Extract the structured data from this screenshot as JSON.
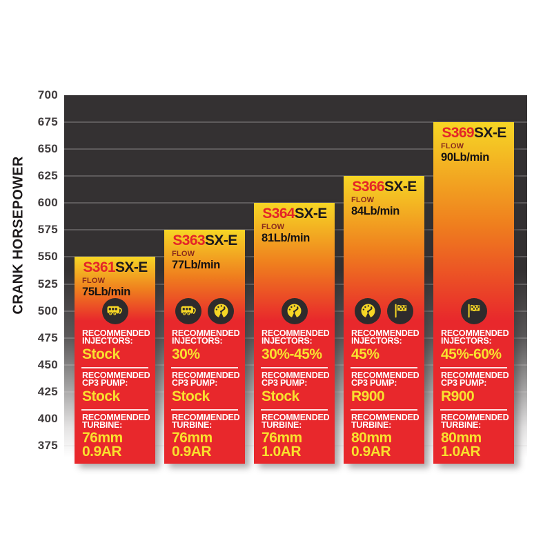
{
  "labels": {
    "flow": "FLOW",
    "recommended": "RECOMMENDED",
    "injectors": "INJECTORS:",
    "cp3_pump": "CP3 PUMP:",
    "turbine": "TURBINE:"
  },
  "colors": {
    "bar_yellow": "#f6d625",
    "bar_orange": "#ef7e1e",
    "bar_red": "#e8282c",
    "value_yellow": "#f9e12e",
    "label_white": "#ffffff",
    "model_red": "#e42528",
    "model_black": "#1d1a1b",
    "icon_circle_bg": "#2e2b2c",
    "plot_bg_dark": "#343132",
    "tick_text": "#3f3b3c"
  },
  "chart_data": {
    "type": "bar",
    "title": "",
    "xlabel": "",
    "ylabel": "CRANK HORSEPOWER",
    "ylim": [
      375,
      700
    ],
    "yticks": [
      700,
      675,
      650,
      625,
      600,
      575,
      550,
      525,
      500,
      475,
      450,
      425,
      400,
      375
    ],
    "grid": "horizontal",
    "legend": "none",
    "categories": [
      "S361SX-E",
      "S363SX-E",
      "S364SX-E",
      "S366SX-E",
      "S369SX-E"
    ],
    "values": [
      550,
      575,
      600,
      625,
      675
    ],
    "bars": [
      {
        "model_prefix": "S361",
        "model_suffix": "SX-E",
        "crank_hp": 550,
        "flow": "75Lb/min",
        "icons": [
          "camper-icon"
        ],
        "injectors": "Stock",
        "cp3_pump": "Stock",
        "turbine_mm": "76mm",
        "turbine_ar": "0.9AR"
      },
      {
        "model_prefix": "S363",
        "model_suffix": "SX-E",
        "crank_hp": 575,
        "flow": "77Lb/min",
        "icons": [
          "camper-icon",
          "gauge-icon"
        ],
        "injectors": "30%",
        "cp3_pump": "Stock",
        "turbine_mm": "76mm",
        "turbine_ar": "0.9AR"
      },
      {
        "model_prefix": "S364",
        "model_suffix": "SX-E",
        "crank_hp": 600,
        "flow": "81Lb/min",
        "icons": [
          "gauge-icon"
        ],
        "injectors": "30%-45%",
        "cp3_pump": "Stock",
        "turbine_mm": "76mm",
        "turbine_ar": "1.0AR"
      },
      {
        "model_prefix": "S366",
        "model_suffix": "SX-E",
        "crank_hp": 625,
        "flow": "84Lb/min",
        "icons": [
          "gauge-icon",
          "flag-icon"
        ],
        "injectors": "45%",
        "cp3_pump": "R900",
        "turbine_mm": "80mm",
        "turbine_ar": "0.9AR"
      },
      {
        "model_prefix": "S369",
        "model_suffix": "SX-E",
        "crank_hp": 675,
        "flow": "90Lb/min",
        "icons": [
          "flag-icon"
        ],
        "injectors": "45%-60%",
        "cp3_pump": "R900",
        "turbine_mm": "80mm",
        "turbine_ar": "1.0AR"
      }
    ]
  }
}
